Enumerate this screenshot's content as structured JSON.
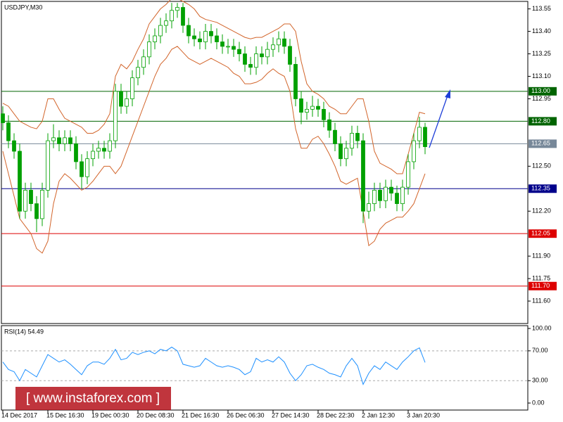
{
  "chart_data": [
    {
      "type": "candlestick",
      "title": "USDJPY,M30",
      "categories": [
        "14 Dec 2017",
        null,
        null,
        null,
        null,
        null,
        null,
        null,
        "15 Dec 16:30",
        null,
        null,
        null,
        null,
        null,
        null,
        null,
        "19 Dec 00:30",
        null,
        null,
        null,
        null,
        null,
        null,
        null,
        "20 Dec 08:30",
        null,
        null,
        null,
        null,
        null,
        null,
        null,
        "21 Dec 16:30",
        null,
        null,
        null,
        null,
        null,
        null,
        null,
        "26 Dec 06:30",
        null,
        null,
        null,
        null,
        null,
        null,
        null,
        "27 Dec 14:30",
        null,
        null,
        null,
        null,
        null,
        null,
        null,
        "28 Dec 22:30",
        null,
        null,
        null,
        null,
        null,
        null,
        null,
        "2 Jan 12:30",
        null,
        null,
        null,
        null,
        null,
        null,
        null,
        "3 Jan 20:30",
        null,
        null,
        null
      ],
      "open": [
        112.85,
        112.79,
        112.67,
        112.6,
        112.2,
        112.34,
        112.25,
        112.15,
        112.34,
        112.67,
        112.69,
        112.65,
        112.69,
        112.65,
        112.53,
        112.43,
        112.55,
        112.6,
        112.62,
        112.6,
        112.67,
        113.0,
        112.9,
        112.95,
        113.09,
        113.16,
        113.23,
        113.33,
        113.37,
        113.44,
        113.47,
        113.54,
        113.56,
        113.44,
        113.37,
        113.35,
        113.33,
        113.4,
        113.37,
        113.33,
        113.3,
        113.3,
        113.28,
        113.25,
        113.18,
        113.16,
        113.25,
        113.23,
        113.28,
        113.31,
        113.35,
        113.3,
        113.18,
        112.95,
        112.86,
        112.88,
        112.9,
        112.88,
        112.81,
        112.74,
        112.65,
        112.55,
        112.62,
        112.72,
        112.67,
        112.2,
        112.25,
        112.34,
        112.27,
        112.36,
        112.32,
        112.25,
        112.36,
        112.53,
        112.67,
        112.76
      ],
      "high": [
        112.9,
        112.84,
        112.72,
        112.65,
        112.39,
        112.39,
        112.3,
        112.39,
        112.72,
        112.78,
        112.74,
        112.74,
        112.74,
        112.7,
        112.58,
        112.6,
        112.65,
        112.67,
        112.67,
        112.72,
        113.05,
        113.05,
        113.0,
        113.14,
        113.21,
        113.28,
        113.38,
        113.42,
        113.49,
        113.52,
        113.59,
        113.59,
        113.59,
        113.49,
        113.42,
        113.4,
        113.45,
        113.45,
        113.42,
        113.38,
        113.35,
        113.35,
        113.33,
        113.3,
        113.23,
        113.3,
        113.3,
        113.33,
        113.36,
        113.4,
        113.4,
        113.35,
        113.23,
        113.0,
        112.93,
        112.97,
        112.95,
        112.93,
        112.86,
        112.79,
        112.7,
        112.67,
        112.77,
        112.77,
        112.72,
        112.33,
        112.39,
        112.39,
        112.41,
        112.41,
        112.37,
        112.41,
        112.58,
        112.72,
        112.83,
        112.79
      ],
      "low": [
        112.74,
        112.62,
        112.55,
        112.15,
        112.15,
        112.2,
        112.06,
        112.1,
        112.29,
        112.62,
        112.6,
        112.6,
        112.6,
        112.48,
        112.35,
        112.38,
        112.5,
        112.55,
        112.55,
        112.55,
        112.62,
        112.85,
        112.85,
        112.9,
        113.04,
        113.11,
        113.18,
        113.28,
        113.32,
        113.39,
        113.42,
        113.49,
        113.39,
        113.32,
        113.3,
        113.28,
        113.28,
        113.32,
        113.28,
        113.25,
        113.25,
        113.23,
        113.2,
        113.13,
        113.11,
        113.11,
        113.18,
        113.18,
        113.23,
        113.26,
        113.25,
        113.13,
        112.9,
        112.78,
        112.81,
        112.83,
        112.83,
        112.76,
        112.69,
        112.6,
        112.5,
        112.5,
        112.57,
        112.62,
        112.12,
        112.15,
        112.2,
        112.22,
        112.22,
        112.27,
        112.2,
        112.2,
        112.31,
        112.48,
        112.62,
        112.58
      ],
      "close": [
        112.79,
        112.67,
        112.6,
        112.2,
        112.34,
        112.25,
        112.15,
        112.34,
        112.67,
        112.69,
        112.65,
        112.69,
        112.65,
        112.53,
        112.43,
        112.55,
        112.6,
        112.62,
        112.6,
        112.67,
        113.0,
        112.9,
        112.95,
        113.09,
        113.16,
        113.23,
        113.33,
        113.37,
        113.44,
        113.47,
        113.54,
        113.56,
        113.44,
        113.37,
        113.35,
        113.33,
        113.4,
        113.37,
        113.33,
        113.3,
        113.3,
        113.28,
        113.25,
        113.18,
        113.16,
        113.25,
        113.23,
        113.28,
        113.31,
        113.35,
        113.3,
        113.18,
        112.95,
        112.86,
        112.88,
        112.9,
        112.88,
        112.81,
        112.74,
        112.65,
        112.55,
        112.62,
        112.72,
        112.67,
        112.2,
        112.25,
        112.34,
        112.27,
        112.36,
        112.32,
        112.25,
        112.36,
        112.53,
        112.67,
        112.76,
        112.63
      ],
      "up_color": "#ffffff",
      "down_color": "#00a000",
      "wick_color": "#00a000",
      "bands_upper": [
        112.92,
        112.9,
        112.85,
        112.8,
        112.78,
        112.76,
        112.75,
        112.8,
        112.95,
        112.95,
        112.88,
        112.82,
        112.8,
        112.78,
        112.76,
        112.72,
        112.72,
        112.74,
        112.78,
        112.85,
        113.1,
        113.18,
        113.15,
        113.2,
        113.28,
        113.35,
        113.45,
        113.5,
        113.55,
        113.58,
        113.62,
        113.62,
        113.6,
        113.58,
        113.55,
        113.5,
        113.48,
        113.47,
        113.46,
        113.44,
        113.42,
        113.4,
        113.38,
        113.36,
        113.35,
        113.36,
        113.36,
        113.38,
        113.4,
        113.42,
        113.45,
        113.45,
        113.4,
        113.2,
        113.05,
        113.0,
        112.98,
        112.95,
        112.9,
        112.88,
        112.85,
        112.85,
        112.9,
        112.95,
        112.95,
        112.8,
        112.6,
        112.52,
        112.5,
        112.48,
        112.45,
        112.45,
        112.58,
        112.72,
        112.86,
        112.85
      ],
      "bands_lower": [
        112.6,
        112.45,
        112.3,
        112.15,
        112.1,
        112.05,
        111.95,
        111.92,
        112.0,
        112.25,
        112.4,
        112.45,
        112.42,
        112.38,
        112.34,
        112.36,
        112.4,
        112.45,
        112.5,
        112.5,
        112.45,
        112.5,
        112.6,
        112.7,
        112.8,
        112.9,
        113.0,
        113.1,
        113.18,
        113.22,
        113.28,
        113.3,
        113.26,
        113.22,
        113.2,
        113.18,
        113.2,
        113.22,
        113.2,
        113.18,
        113.16,
        113.12,
        113.1,
        113.05,
        113.05,
        113.06,
        113.08,
        113.12,
        113.15,
        113.12,
        113.1,
        113.0,
        112.75,
        112.62,
        112.62,
        112.68,
        112.7,
        112.65,
        112.58,
        112.5,
        112.4,
        112.38,
        112.4,
        112.42,
        112.2,
        111.97,
        112.0,
        112.08,
        112.12,
        112.14,
        112.16,
        112.16,
        112.2,
        112.25,
        112.35,
        112.45
      ],
      "band_color": "#d2642a",
      "ylim": [
        111.45,
        113.6
      ],
      "yticks": [
        113.55,
        {
          "value": 113.4,
          "label": "113.40"
        },
        113.25,
        {
          "value": 113.1,
          "label": "113.10"
        },
        112.95,
        {
          "value": 112.5,
          "label": "112.50"
        },
        {
          "value": 112.2,
          "label": "112.20"
        },
        {
          "value": 111.9,
          "label": "111.90"
        },
        111.75,
        {
          "value": 111.6,
          "label": "111.60"
        }
      ],
      "levels": [
        {
          "value": 113,
          "label": "113.00",
          "color": "#006400"
        },
        {
          "value": 112.8,
          "label": "112.80",
          "color": "#006400"
        },
        {
          "value": 112.65,
          "label": "112.65",
          "color": "#778899"
        },
        {
          "value": 112.35,
          "label": "112.35",
          "color": "#00008b"
        },
        {
          "value": 112.05,
          "label": "112.05",
          "color": "#dd0000"
        },
        {
          "value": 111.7,
          "label": "111.70",
          "color": "#dd0000"
        }
      ]
    },
    {
      "type": "line",
      "title": "RSI(14) 54.49",
      "values": [
        55,
        45,
        42,
        30,
        45,
        40,
        35,
        50,
        65,
        60,
        55,
        58,
        52,
        45,
        38,
        50,
        55,
        55,
        52,
        60,
        72,
        58,
        60,
        68,
        65,
        68,
        70,
        66,
        72,
        70,
        75,
        70,
        52,
        50,
        48,
        50,
        60,
        55,
        50,
        48,
        50,
        48,
        45,
        38,
        42,
        60,
        55,
        58,
        55,
        62,
        55,
        40,
        30,
        38,
        50,
        52,
        48,
        45,
        40,
        38,
        35,
        50,
        60,
        50,
        25,
        40,
        50,
        45,
        55,
        50,
        45,
        55,
        62,
        70,
        74,
        54.49
      ],
      "color": "#1e90ff",
      "ylim": [
        -9.4,
        103.8
      ],
      "yticks": [
        {
          "value": 100,
          "label": "100.00"
        },
        {
          "value": 70,
          "label": "70.00"
        },
        {
          "value": 30,
          "label": "30.00"
        },
        {
          "value": 0,
          "label": "0.00"
        }
      ],
      "levels": [
        70,
        30
      ]
    }
  ],
  "watermark": "[  www.instaforex.com ]"
}
